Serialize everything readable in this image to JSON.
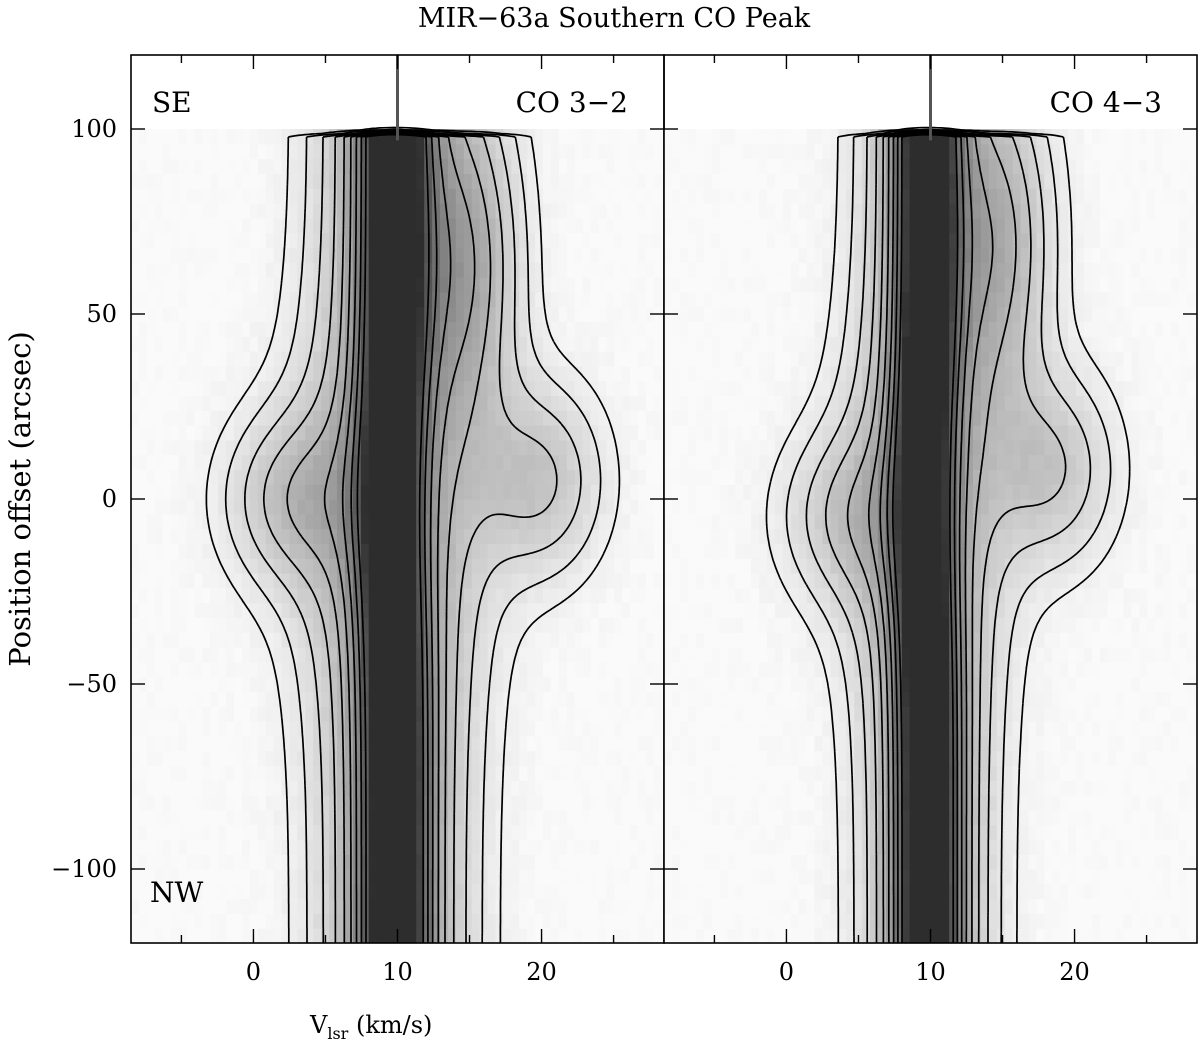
{
  "chart_data": {
    "type": "heatmap",
    "title": "MIR−63a Southern CO Peak",
    "ylabel": "Position offset (arcsec)",
    "xlabel_main": "V",
    "xlabel_sub": "lsr",
    "xlabel_unit": " (km/s)",
    "xlim": [
      -8.5,
      28.5
    ],
    "ylim": [
      -120,
      120
    ],
    "x_ticks": [
      0,
      10,
      20
    ],
    "x_tick_labels": [
      "0",
      "10",
      "20"
    ],
    "y_ticks": [
      -100,
      -50,
      0,
      50,
      100
    ],
    "y_tick_labels": [
      "−100",
      "−50",
      "0",
      "50",
      "100"
    ],
    "reference_velocity": 10,
    "position_range": [
      -120,
      98
    ],
    "colors": {
      "contour": "#000000",
      "reference_line": "#555555",
      "grayscale_min": "#fafafa",
      "grayscale_max": "#2a2a2a"
    },
    "panels": [
      {
        "name": "CO 3−2",
        "label": "CO 3−2",
        "position_labels": {
          "top": "SE",
          "bottom": "NW"
        },
        "peak_velocity": 9.8,
        "line_width": 1.5,
        "wing_width": 3.5,
        "wing_amplitude": 0.45,
        "blue_bump": {
          "velocity": 2.5,
          "position": 0,
          "amplitude": 0.22
        },
        "red_bump": {
          "velocity": 20,
          "position": 5,
          "amplitude": 0.25
        },
        "red_shoulder": {
          "velocity": 15,
          "position": 65,
          "amplitude": 0.3
        },
        "contour_levels": [
          0.05,
          0.1,
          0.17,
          0.25,
          0.34,
          0.44,
          0.55,
          0.67,
          0.8
        ]
      },
      {
        "name": "CO 4−3",
        "label": "CO 4−3",
        "position_labels": {
          "top": "",
          "bottom": ""
        },
        "peak_velocity": 9.8,
        "line_width": 1.4,
        "wing_width": 3.0,
        "wing_amplitude": 0.42,
        "blue_bump": {
          "velocity": 4,
          "position": -5,
          "amplitude": 0.18
        },
        "red_bump": {
          "velocity": 18.5,
          "position": 8,
          "amplitude": 0.24
        },
        "red_shoulder": {
          "velocity": 15,
          "position": 70,
          "amplitude": 0.3
        },
        "contour_levels": [
          0.05,
          0.1,
          0.17,
          0.25,
          0.34,
          0.44,
          0.55,
          0.67,
          0.8
        ]
      }
    ]
  }
}
